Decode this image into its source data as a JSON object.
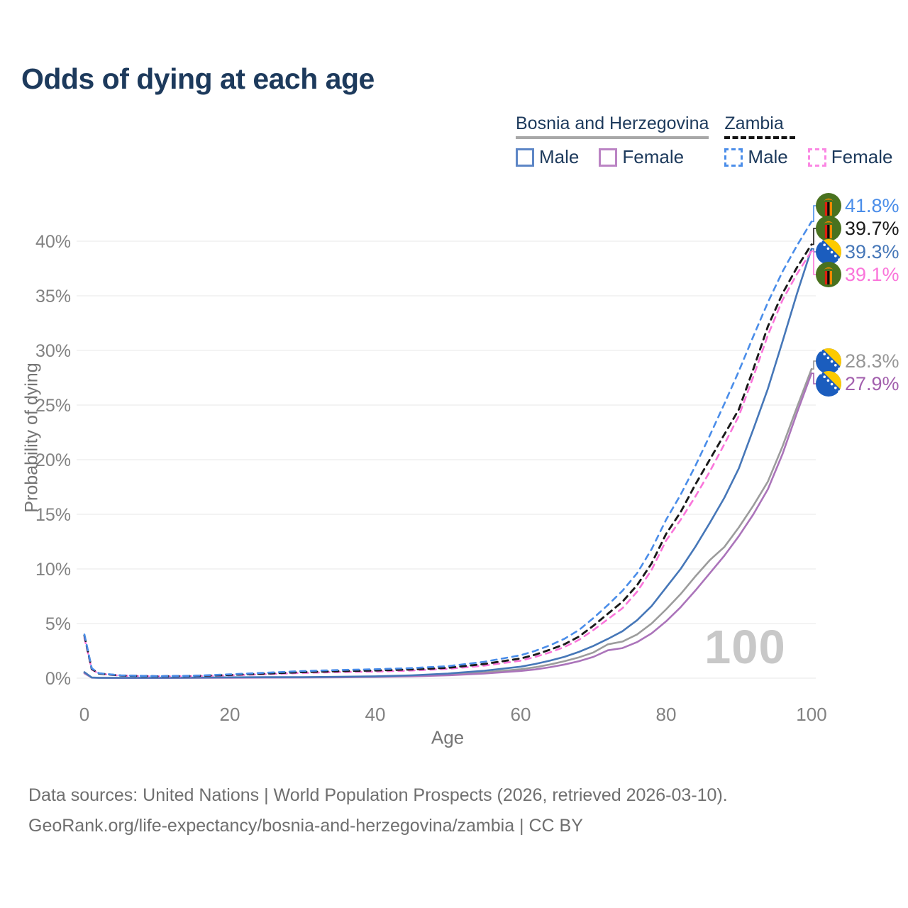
{
  "title": "Odds of dying at each age",
  "watermark": "100",
  "legend": {
    "groups": [
      {
        "name": "Bosnia and Herzegovina",
        "line_style": "solid",
        "underline_color": "#a8a8a8",
        "items": [
          {
            "label": "Male",
            "color": "#5d86c6"
          },
          {
            "label": "Female",
            "color": "#bb84c4"
          }
        ]
      },
      {
        "name": "Zambia",
        "line_style": "dashed",
        "underline_color": "#141414",
        "items": [
          {
            "label": "Male",
            "color": "#4a8de9"
          },
          {
            "label": "Female",
            "color": "#fb87e3"
          }
        ]
      }
    ]
  },
  "chart_data": {
    "type": "line",
    "title": "Odds of dying at each age",
    "xlabel": "Age",
    "ylabel": "Probability of dying",
    "xlim": [
      0,
      100
    ],
    "ylim": [
      0,
      43
    ],
    "grid": true,
    "xticks": [
      {
        "value": 0,
        "label": "0"
      },
      {
        "value": 20,
        "label": "20"
      },
      {
        "value": 40,
        "label": "40"
      },
      {
        "value": 60,
        "label": "60"
      },
      {
        "value": 80,
        "label": "80"
      },
      {
        "value": 100,
        "label": "100"
      }
    ],
    "yticks": [
      {
        "value": 0,
        "label": "0%"
      },
      {
        "value": 5,
        "label": "5%"
      },
      {
        "value": 10,
        "label": "10%"
      },
      {
        "value": 15,
        "label": "15%"
      },
      {
        "value": 20,
        "label": "20%"
      },
      {
        "value": 25,
        "label": "25%"
      },
      {
        "value": 30,
        "label": "30%"
      },
      {
        "value": 35,
        "label": "35%"
      },
      {
        "value": 40,
        "label": "40%"
      }
    ],
    "series": [
      {
        "id": "bosnia-all",
        "name": "Bosnia and Herzegovina",
        "sex": "all",
        "color": "#9c9c9c",
        "dash": false,
        "end_value_pct": 28.3,
        "points": [
          [
            0,
            0.5
          ],
          [
            1,
            0.05
          ],
          [
            2,
            0.035
          ],
          [
            5,
            0.025
          ],
          [
            10,
            0.025
          ],
          [
            15,
            0.04
          ],
          [
            20,
            0.06
          ],
          [
            25,
            0.07
          ],
          [
            30,
            0.08
          ],
          [
            35,
            0.1
          ],
          [
            40,
            0.14
          ],
          [
            45,
            0.21
          ],
          [
            50,
            0.33
          ],
          [
            55,
            0.53
          ],
          [
            60,
            0.82
          ],
          [
            62,
            1.0
          ],
          [
            64,
            1.25
          ],
          [
            66,
            1.55
          ],
          [
            68,
            1.9
          ],
          [
            70,
            2.35
          ],
          [
            72,
            3.1
          ],
          [
            74,
            3.35
          ],
          [
            76,
            4.0
          ],
          [
            78,
            5.0
          ],
          [
            80,
            6.3
          ],
          [
            82,
            7.7
          ],
          [
            84,
            9.3
          ],
          [
            86,
            10.8
          ],
          [
            88,
            12.0
          ],
          [
            90,
            13.8
          ],
          [
            92,
            15.8
          ],
          [
            94,
            18.0
          ],
          [
            96,
            21.2
          ],
          [
            98,
            24.8
          ],
          [
            100,
            28.3
          ]
        ]
      },
      {
        "id": "bosnia-female",
        "name": "Bosnia and Herzegovina Female",
        "sex": "female",
        "color": "#ab74ba",
        "dash": false,
        "end_value_pct": 27.9,
        "points": [
          [
            0,
            0.45
          ],
          [
            1,
            0.045
          ],
          [
            2,
            0.03
          ],
          [
            5,
            0.02
          ],
          [
            10,
            0.02
          ],
          [
            15,
            0.03
          ],
          [
            20,
            0.04
          ],
          [
            25,
            0.05
          ],
          [
            30,
            0.06
          ],
          [
            35,
            0.08
          ],
          [
            40,
            0.11
          ],
          [
            45,
            0.17
          ],
          [
            50,
            0.26
          ],
          [
            55,
            0.42
          ],
          [
            60,
            0.66
          ],
          [
            62,
            0.8
          ],
          [
            64,
            1.0
          ],
          [
            66,
            1.25
          ],
          [
            68,
            1.55
          ],
          [
            70,
            1.95
          ],
          [
            72,
            2.55
          ],
          [
            74,
            2.75
          ],
          [
            76,
            3.3
          ],
          [
            78,
            4.1
          ],
          [
            80,
            5.2
          ],
          [
            82,
            6.5
          ],
          [
            84,
            8.0
          ],
          [
            86,
            9.6
          ],
          [
            88,
            11.2
          ],
          [
            90,
            13.0
          ],
          [
            92,
            15.0
          ],
          [
            94,
            17.3
          ],
          [
            96,
            20.5
          ],
          [
            98,
            24.3
          ],
          [
            100,
            27.9
          ]
        ]
      },
      {
        "id": "bosnia-male",
        "name": "Bosnia and Herzegovina Male",
        "sex": "male",
        "color": "#4677b8",
        "dash": false,
        "end_value_pct": 39.3,
        "points": [
          [
            0,
            0.55
          ],
          [
            1,
            0.06
          ],
          [
            2,
            0.04
          ],
          [
            5,
            0.03
          ],
          [
            10,
            0.03
          ],
          [
            15,
            0.05
          ],
          [
            20,
            0.08
          ],
          [
            25,
            0.09
          ],
          [
            30,
            0.1
          ],
          [
            35,
            0.13
          ],
          [
            40,
            0.17
          ],
          [
            45,
            0.26
          ],
          [
            50,
            0.42
          ],
          [
            55,
            0.68
          ],
          [
            60,
            1.05
          ],
          [
            62,
            1.3
          ],
          [
            64,
            1.6
          ],
          [
            66,
            1.95
          ],
          [
            68,
            2.4
          ],
          [
            70,
            2.95
          ],
          [
            72,
            3.6
          ],
          [
            74,
            4.3
          ],
          [
            76,
            5.3
          ],
          [
            78,
            6.6
          ],
          [
            80,
            8.3
          ],
          [
            82,
            10.0
          ],
          [
            84,
            12.0
          ],
          [
            86,
            14.2
          ],
          [
            88,
            16.5
          ],
          [
            90,
            19.2
          ],
          [
            92,
            22.8
          ],
          [
            94,
            26.5
          ],
          [
            96,
            30.8
          ],
          [
            98,
            35.2
          ],
          [
            100,
            39.3
          ]
        ]
      },
      {
        "id": "zambia-female",
        "name": "Zambia Female",
        "sex": "female",
        "color": "#fa75da",
        "dash": true,
        "end_value_pct": 39.1,
        "points": [
          [
            0,
            3.7
          ],
          [
            1,
            0.8
          ],
          [
            2,
            0.4
          ],
          [
            5,
            0.23
          ],
          [
            10,
            0.16
          ],
          [
            15,
            0.18
          ],
          [
            20,
            0.26
          ],
          [
            25,
            0.36
          ],
          [
            30,
            0.48
          ],
          [
            35,
            0.56
          ],
          [
            40,
            0.6
          ],
          [
            45,
            0.7
          ],
          [
            50,
            0.85
          ],
          [
            55,
            1.15
          ],
          [
            60,
            1.6
          ],
          [
            62,
            1.95
          ],
          [
            64,
            2.35
          ],
          [
            66,
            2.85
          ],
          [
            68,
            3.5
          ],
          [
            70,
            4.4
          ],
          [
            72,
            5.4
          ],
          [
            74,
            6.4
          ],
          [
            76,
            7.9
          ],
          [
            78,
            9.9
          ],
          [
            80,
            12.6
          ],
          [
            82,
            14.5
          ],
          [
            84,
            16.6
          ],
          [
            86,
            18.9
          ],
          [
            88,
            21.4
          ],
          [
            90,
            24.0
          ],
          [
            92,
            27.6
          ],
          [
            94,
            31.4
          ],
          [
            96,
            34.6
          ],
          [
            98,
            37.0
          ],
          [
            100,
            39.1
          ]
        ]
      },
      {
        "id": "zambia-all",
        "name": "Zambia",
        "sex": "all",
        "color": "#1a1a1a",
        "dash": true,
        "end_value_pct": 39.7,
        "points": [
          [
            0,
            3.9
          ],
          [
            1,
            0.85
          ],
          [
            2,
            0.42
          ],
          [
            5,
            0.24
          ],
          [
            10,
            0.17
          ],
          [
            15,
            0.2
          ],
          [
            20,
            0.3
          ],
          [
            25,
            0.42
          ],
          [
            30,
            0.55
          ],
          [
            35,
            0.64
          ],
          [
            40,
            0.7
          ],
          [
            45,
            0.8
          ],
          [
            50,
            0.95
          ],
          [
            55,
            1.3
          ],
          [
            60,
            1.8
          ],
          [
            62,
            2.15
          ],
          [
            64,
            2.6
          ],
          [
            66,
            3.1
          ],
          [
            68,
            3.8
          ],
          [
            70,
            4.8
          ],
          [
            72,
            5.9
          ],
          [
            74,
            7.0
          ],
          [
            76,
            8.5
          ],
          [
            78,
            10.5
          ],
          [
            80,
            13.2
          ],
          [
            82,
            15.2
          ],
          [
            84,
            17.7
          ],
          [
            86,
            20.0
          ],
          [
            88,
            22.3
          ],
          [
            90,
            24.6
          ],
          [
            92,
            28.3
          ],
          [
            94,
            32.2
          ],
          [
            96,
            35.2
          ],
          [
            98,
            37.6
          ],
          [
            100,
            39.7
          ]
        ]
      },
      {
        "id": "zambia-male",
        "name": "Zambia Male",
        "sex": "male",
        "color": "#4a8de9",
        "dash": true,
        "end_value_pct": 41.8,
        "points": [
          [
            0,
            4.0
          ],
          [
            1,
            0.9
          ],
          [
            2,
            0.45
          ],
          [
            5,
            0.25
          ],
          [
            10,
            0.18
          ],
          [
            15,
            0.22
          ],
          [
            20,
            0.35
          ],
          [
            25,
            0.5
          ],
          [
            30,
            0.65
          ],
          [
            35,
            0.75
          ],
          [
            40,
            0.82
          ],
          [
            45,
            0.92
          ],
          [
            50,
            1.1
          ],
          [
            55,
            1.5
          ],
          [
            60,
            2.1
          ],
          [
            62,
            2.5
          ],
          [
            64,
            3.0
          ],
          [
            66,
            3.6
          ],
          [
            68,
            4.4
          ],
          [
            70,
            5.5
          ],
          [
            72,
            6.7
          ],
          [
            74,
            8.0
          ],
          [
            76,
            9.6
          ],
          [
            78,
            11.8
          ],
          [
            80,
            14.5
          ],
          [
            82,
            16.8
          ],
          [
            84,
            19.4
          ],
          [
            86,
            22.2
          ],
          [
            88,
            25.1
          ],
          [
            90,
            28.1
          ],
          [
            92,
            31.3
          ],
          [
            94,
            34.4
          ],
          [
            96,
            37.2
          ],
          [
            98,
            39.6
          ],
          [
            100,
            41.8
          ]
        ]
      }
    ]
  },
  "end_labels": [
    {
      "value": "41.8%",
      "series": "zambia-male",
      "flag": "zm",
      "color": "#4a8de9"
    },
    {
      "value": "39.7%",
      "series": "zambia-all",
      "flag": "zm",
      "color": "#1a1a1a"
    },
    {
      "value": "39.3%",
      "series": "bosnia-male",
      "flag": "ba",
      "color": "#4677b8"
    },
    {
      "value": "39.1%",
      "series": "zambia-female",
      "flag": "zm",
      "color": "#fa75da"
    },
    {
      "value": "28.3%",
      "series": "bosnia-all",
      "flag": "ba",
      "color": "#969696"
    },
    {
      "value": "27.9%",
      "series": "bosnia-female",
      "flag": "ba",
      "color": "#a25fad"
    }
  ],
  "footer": {
    "line1": "Data sources: United Nations | World Population Prospects (2026, retrieved 2026-03-10).",
    "line2": "GeoRank.org/life-expectancy/bosnia-and-herzegovina/zambia | CC BY"
  }
}
